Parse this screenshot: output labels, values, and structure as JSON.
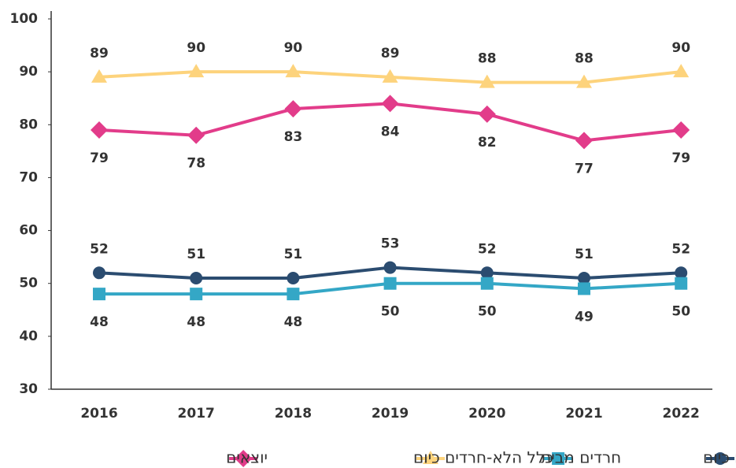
{
  "chart_data": {
    "type": "line",
    "categories": [
      "2016",
      "2017",
      "2018",
      "2019",
      "2020",
      "2021",
      "2022"
    ],
    "series": [
      {
        "name": "כלל החרדים כיום",
        "color": "#2b4c70",
        "marker": "circle",
        "values": [
          52,
          51,
          51,
          53,
          52,
          51,
          52
        ]
      },
      {
        "name": "חרדים מבית",
        "color": "#34a7c6",
        "marker": "square",
        "values": [
          48,
          48,
          48,
          50,
          50,
          49,
          50
        ]
      },
      {
        "name": "כלל הלא-חרדים כיום",
        "color": "#fdd37c",
        "marker": "triangle",
        "values": [
          89,
          90,
          90,
          89,
          88,
          88,
          90
        ]
      },
      {
        "name": "יוצאים",
        "color": "#e23c8a",
        "marker": "diamond",
        "values": [
          79,
          78,
          83,
          84,
          82,
          77,
          79
        ]
      }
    ],
    "ylim": [
      30,
      100
    ],
    "yticks": [
      30,
      40,
      50,
      60,
      70,
      80,
      90,
      100
    ],
    "grid": false,
    "legend": "bottom"
  }
}
